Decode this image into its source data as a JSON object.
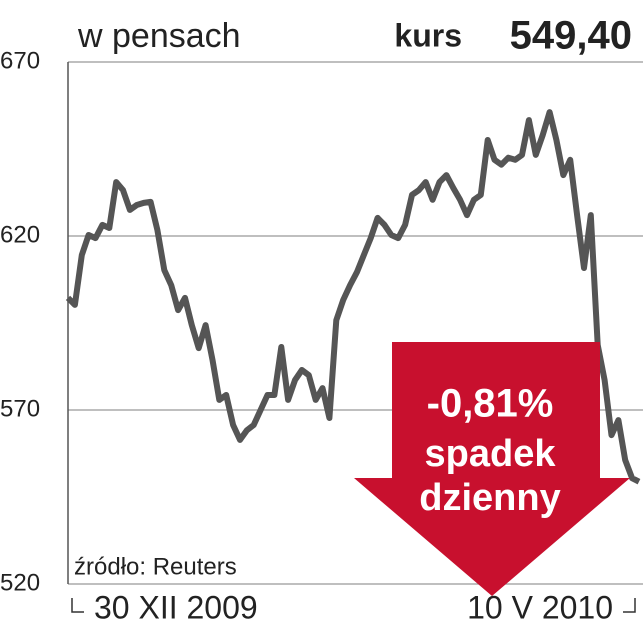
{
  "chart_data": {
    "type": "line",
    "title": "w pensach",
    "price_label": "kurs",
    "price_value": "549,40",
    "annotation": {
      "change": "-0,81%",
      "line1": "spadek",
      "line2": "dzienny"
    },
    "source": "źródło: Reuters",
    "categories": [
      "30 XII 2009",
      null,
      null,
      null,
      null,
      null,
      null,
      null,
      null,
      null,
      null,
      null,
      null,
      null,
      null,
      null,
      null,
      null,
      null,
      null,
      null,
      null,
      null,
      null,
      null,
      null,
      null,
      null,
      null,
      null,
      null,
      null,
      null,
      null,
      null,
      null,
      null,
      null,
      null,
      null,
      null,
      null,
      null,
      null,
      null,
      null,
      null,
      null,
      null,
      null,
      null,
      null,
      null,
      null,
      null,
      null,
      null,
      null,
      null,
      null,
      null,
      null,
      null,
      null,
      null,
      null,
      null,
      null,
      null,
      null,
      null,
      null,
      null,
      null,
      null,
      null,
      null,
      null,
      null,
      null,
      null,
      null,
      null,
      "10 V 2010"
    ],
    "series": [
      {
        "color": "#555555",
        "values": [
          602.2,
          600.2,
          614.5,
          620.3,
          619.4,
          623.2,
          622.3,
          635.5,
          633.2,
          627.5,
          628.9,
          629.5,
          629.8,
          621.7,
          610.2,
          605.9,
          598.7,
          602.2,
          594.4,
          587.8,
          594.4,
          584.4,
          572.9,
          574.3,
          565.7,
          561.4,
          564.2,
          565.7,
          570.0,
          574.3,
          574.3,
          588.1,
          572.9,
          578.6,
          581.5,
          580.0,
          572.9,
          576.3,
          567.7,
          595.8,
          601.6,
          605.9,
          609.6,
          614.5,
          619.4,
          625.2,
          623.2,
          620.3,
          619.4,
          623.2,
          631.8,
          633.2,
          635.5,
          630.4,
          635.5,
          637.5,
          633.8,
          630.4,
          626.0,
          630.4,
          631.8,
          647.6,
          641.9,
          640.5,
          642.5,
          641.9,
          643.3,
          653.3,
          643.3,
          649.0,
          655.6,
          647.6,
          637.5,
          641.9,
          626.0,
          610.8,
          626.0,
          588.7,
          578.6,
          562.8,
          567.1,
          555.6,
          550.4,
          549.4
        ]
      }
    ],
    "ylim": [
      520,
      670
    ],
    "yticks": [
      520,
      570,
      620,
      670
    ],
    "grid": true,
    "annotation_color": "#c8102e"
  }
}
